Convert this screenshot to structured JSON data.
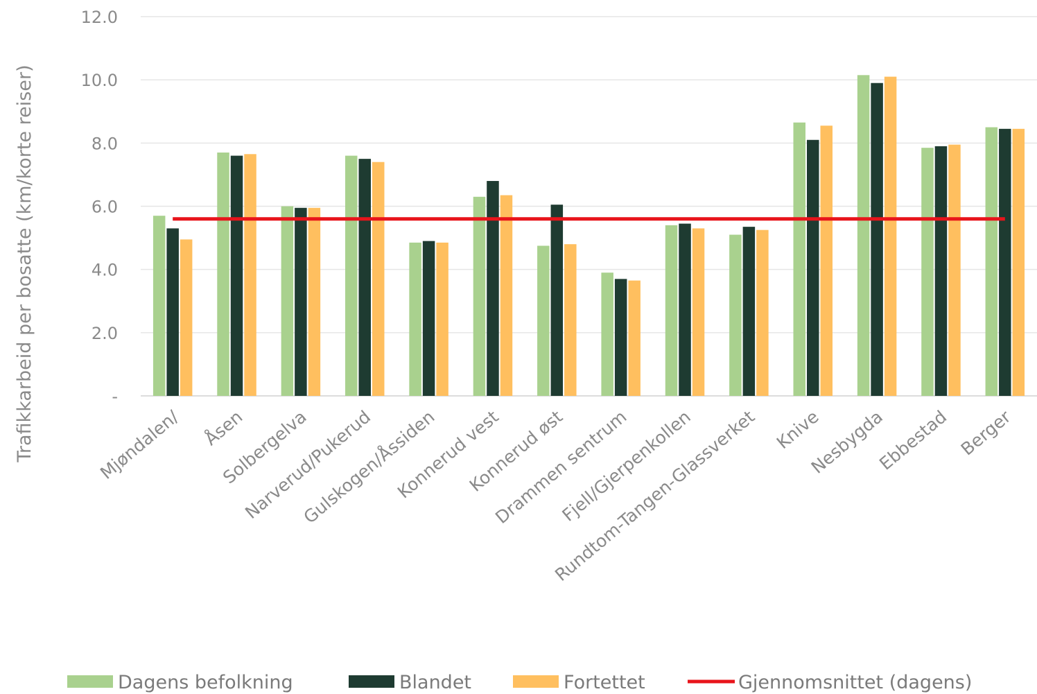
{
  "chart_data": {
    "type": "bar",
    "title": "",
    "xlabel": "",
    "ylabel": "Trafikkarbeid per bosatte (km/korte reiser)",
    "ylim": [
      0,
      12
    ],
    "yticks": [
      {
        "value": 0,
        "label": "-"
      },
      {
        "value": 2,
        "label": "2.0"
      },
      {
        "value": 4,
        "label": "4.0"
      },
      {
        "value": 6,
        "label": "6.0"
      },
      {
        "value": 8,
        "label": "8.0"
      },
      {
        "value": 10,
        "label": "10.0"
      },
      {
        "value": 12,
        "label": "12.0"
      }
    ],
    "grid": true,
    "legend_position": "bottom",
    "categories": [
      "Mjøndalen/",
      "Åsen",
      "Solbergelva",
      "Narverud/Pukerud",
      "Gulskogen/Åssiden",
      "Konnerud vest",
      "Konnerud øst",
      "Drammen sentrum",
      "Fjell/Gjerpenkollen",
      "Rundtom-Tangen-Glassverket",
      "Knive",
      "Nesbygda",
      "Ebbestad",
      "Berger"
    ],
    "series": [
      {
        "name": "Dagens befolkning",
        "color": "#a9d18e",
        "values": [
          5.7,
          7.7,
          6.0,
          7.6,
          4.85,
          6.3,
          4.75,
          3.9,
          5.4,
          5.1,
          8.65,
          10.15,
          7.85,
          8.5
        ]
      },
      {
        "name": "Blandet",
        "color": "#1e3b31",
        "values": [
          5.3,
          7.6,
          5.95,
          7.5,
          4.9,
          6.8,
          6.05,
          3.7,
          5.45,
          5.35,
          8.1,
          9.9,
          7.9,
          8.45
        ]
      },
      {
        "name": "Fortettet",
        "color": "#ffbf5f",
        "values": [
          4.95,
          7.65,
          5.95,
          7.4,
          4.85,
          6.35,
          4.8,
          3.65,
          5.3,
          5.25,
          8.55,
          10.1,
          7.95,
          8.45
        ]
      }
    ],
    "reference_line": {
      "name": "Gjennomsnittet (dagens)",
      "color": "#e8141b",
      "value": 5.6
    }
  }
}
